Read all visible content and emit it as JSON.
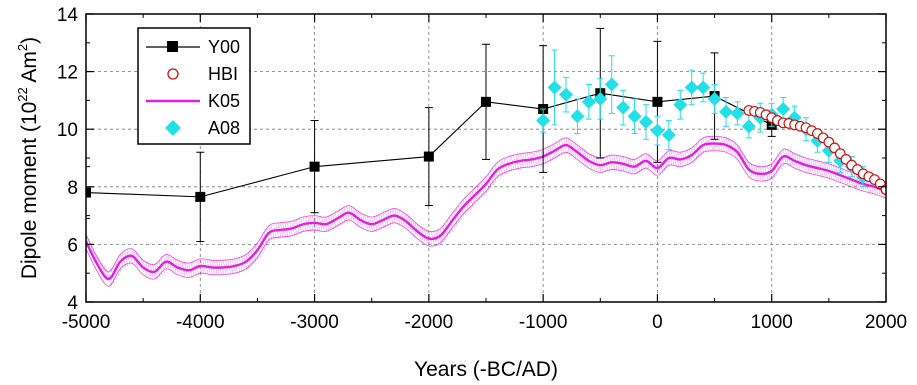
{
  "chart_data": {
    "type": "line",
    "xlabel": "Years (-BC/AD)",
    "ylabel": {
      "prefix": "Dipole moment (10",
      "sup1": "22",
      "middle": " Am",
      "sup2": "2",
      "suffix": ")"
    },
    "xlim": [
      -5000,
      2000
    ],
    "ylim": [
      4,
      14
    ],
    "xticks": [
      -5000,
      -4000,
      -3000,
      -2000,
      -1000,
      0,
      1000,
      2000
    ],
    "yticks": [
      4,
      6,
      8,
      10,
      12,
      14
    ],
    "grid": true,
    "legend_position": "top-left",
    "colors": {
      "Y00": "#000000",
      "HBI": "#cc1111",
      "K05": "#e020e0",
      "A08": "#22e0e8"
    },
    "series": [
      {
        "name": "Y00",
        "style": "line-square",
        "x": [
          -5000,
          -4000,
          -3000,
          -2000,
          -1500,
          -1000,
          -500,
          0,
          500,
          1000
        ],
        "y": [
          7.8,
          7.65,
          8.7,
          9.05,
          10.95,
          10.7,
          11.25,
          10.95,
          11.15,
          10.15
        ],
        "err": [
          0.9,
          1.55,
          1.6,
          1.7,
          2.0,
          2.2,
          2.25,
          2.1,
          1.5,
          0.4
        ]
      },
      {
        "name": "HBI",
        "style": "open-circle",
        "x": [
          800,
          850,
          900,
          950,
          1000,
          1050,
          1100,
          1150,
          1200,
          1250,
          1300,
          1350,
          1400,
          1450,
          1500,
          1550,
          1600,
          1650,
          1700,
          1750,
          1800,
          1850,
          1900,
          1950,
          2000
        ],
        "y": [
          10.65,
          10.62,
          10.58,
          10.5,
          10.4,
          10.3,
          10.22,
          10.2,
          10.15,
          10.1,
          10.05,
          9.95,
          9.85,
          9.7,
          9.55,
          9.35,
          9.15,
          8.95,
          8.75,
          8.6,
          8.45,
          8.35,
          8.25,
          8.1,
          7.9
        ]
      },
      {
        "name": "K05",
        "style": "band-line",
        "x": [
          -5000,
          -4900,
          -4800,
          -4700,
          -4600,
          -4500,
          -4400,
          -4300,
          -4200,
          -4100,
          -4000,
          -3900,
          -3800,
          -3700,
          -3600,
          -3500,
          -3400,
          -3300,
          -3200,
          -3100,
          -3000,
          -2900,
          -2800,
          -2700,
          -2600,
          -2500,
          -2400,
          -2300,
          -2200,
          -2100,
          -2000,
          -1900,
          -1800,
          -1700,
          -1600,
          -1500,
          -1400,
          -1300,
          -1200,
          -1100,
          -1000,
          -900,
          -800,
          -700,
          -600,
          -500,
          -400,
          -300,
          -200,
          -100,
          0,
          100,
          200,
          300,
          400,
          500,
          600,
          700,
          800,
          900,
          1000,
          1100,
          1200,
          1300,
          1400,
          1500,
          1600,
          1700,
          1800,
          1900,
          2000
        ],
        "y": [
          6.1,
          5.3,
          4.8,
          5.4,
          5.6,
          5.2,
          5.05,
          5.4,
          5.2,
          5.1,
          5.25,
          5.2,
          5.2,
          5.25,
          5.4,
          5.8,
          6.4,
          6.5,
          6.55,
          6.7,
          6.75,
          6.7,
          6.9,
          7.1,
          6.85,
          6.7,
          6.85,
          7.0,
          6.8,
          6.45,
          6.2,
          6.3,
          6.8,
          7.3,
          7.7,
          8.1,
          8.6,
          8.8,
          8.9,
          8.95,
          9.05,
          9.25,
          9.45,
          9.2,
          8.9,
          8.75,
          8.85,
          8.8,
          8.7,
          8.9,
          8.65,
          9.0,
          8.95,
          9.1,
          9.45,
          9.5,
          9.45,
          9.2,
          8.6,
          8.45,
          8.55,
          9.05,
          8.9,
          8.75,
          8.65,
          8.55,
          8.4,
          8.25,
          8.1,
          8.0,
          7.85
        ],
        "band": 0.25
      },
      {
        "name": "A08",
        "style": "diamond-errorbar",
        "x": [
          -1000,
          -900,
          -800,
          -700,
          -600,
          -500,
          -400,
          -300,
          -200,
          -100,
          0,
          100,
          200,
          300,
          400,
          500,
          600,
          700,
          800,
          900,
          1000,
          1100,
          1200,
          1300,
          1400,
          1500,
          1600,
          1700,
          1800
        ],
        "y": [
          10.3,
          11.45,
          11.2,
          10.45,
          10.95,
          11.05,
          11.55,
          10.75,
          10.45,
          10.25,
          9.95,
          9.8,
          10.85,
          11.45,
          11.45,
          11.05,
          10.6,
          10.55,
          10.1,
          10.4,
          10.5,
          10.7,
          10.4,
          10.0,
          9.6,
          9.25,
          8.9,
          8.7,
          8.35
        ],
        "err": [
          0.4,
          1.3,
          0.6,
          0.6,
          0.6,
          0.7,
          1.0,
          0.6,
          0.6,
          0.6,
          0.5,
          0.5,
          0.5,
          0.6,
          0.5,
          0.5,
          0.5,
          0.4,
          0.4,
          0.5,
          0.4,
          0.4,
          0.4,
          0.4,
          0.4,
          0.4,
          0.4,
          0.35,
          0.35
        ]
      }
    ]
  }
}
